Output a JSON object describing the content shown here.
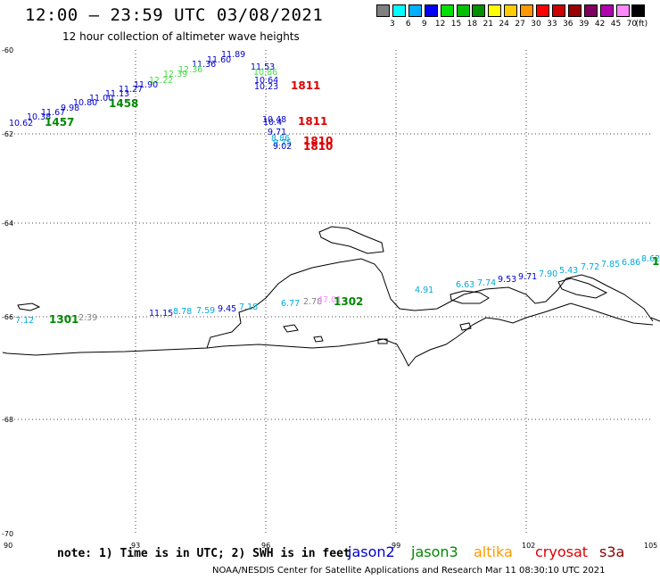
{
  "header": {
    "title": "12:00 – 23:59 UTC 03/08/2021",
    "subtitle": "12 hour collection of altimeter wave heights"
  },
  "color_scale": {
    "unit": "(ft)",
    "bins": [
      {
        "label": "",
        "color": "#808080"
      },
      {
        "label": "3",
        "color": "#00ffff"
      },
      {
        "label": "6",
        "color": "#00b0ff"
      },
      {
        "label": "9",
        "color": "#0000ff"
      },
      {
        "label": "12",
        "color": "#00e000"
      },
      {
        "label": "15",
        "color": "#00c000"
      },
      {
        "label": "18",
        "color": "#009000"
      },
      {
        "label": "21",
        "color": "#ffff00"
      },
      {
        "label": "24",
        "color": "#ffcc00"
      },
      {
        "label": "27",
        "color": "#ff9900"
      },
      {
        "label": "30",
        "color": "#ff0000"
      },
      {
        "label": "33",
        "color": "#cc0000"
      },
      {
        "label": "36",
        "color": "#990000"
      },
      {
        "label": "39",
        "color": "#800060"
      },
      {
        "label": "42",
        "color": "#b000b0"
      },
      {
        "label": "45",
        "color": "#ff88ff"
      },
      {
        "label": "70",
        "color": "#000000"
      }
    ]
  },
  "axes": {
    "lat_labels": [
      "-60",
      "-62",
      "-64",
      "-66",
      "-68",
      "-70"
    ],
    "lon_labels": [
      "90",
      "93",
      "96",
      "99",
      "102",
      "105"
    ]
  },
  "markers": [
    {
      "text": "11.89",
      "color": "#0000cc"
    },
    {
      "text": "11.60",
      "color": "#0000cc"
    },
    {
      "text": "11.36",
      "color": "#0000cc"
    },
    {
      "text": "12.36",
      "color": "#44dd44"
    },
    {
      "text": "12.39",
      "color": "#44dd44"
    },
    {
      "text": "12.22",
      "color": "#44dd44"
    },
    {
      "text": "11.90",
      "color": "#0000cc"
    },
    {
      "text": "11.27",
      "color": "#0000cc"
    },
    {
      "text": "11.13",
      "color": "#0000cc"
    },
    {
      "text": "11.00",
      "color": "#0000cc"
    },
    {
      "text": "10.80",
      "color": "#0000cc"
    },
    {
      "text": "9.98",
      "color": "#0000cc"
    },
    {
      "text": "11.67",
      "color": "#0000cc"
    },
    {
      "text": "10.38",
      "color": "#0000cc"
    },
    {
      "text": "10.62",
      "color": "#0000cc"
    },
    {
      "text": "1457",
      "color": "#008800"
    },
    {
      "text": "1458",
      "color": "#008800"
    },
    {
      "text": "11.53",
      "color": "#0000cc"
    },
    {
      "text": "10.86",
      "color": "#44dd44"
    },
    {
      "text": "10.64",
      "color": "#0000cc"
    },
    {
      "text": "10.23",
      "color": "#0000cc"
    },
    {
      "text": "1811",
      "color": "#dd0000"
    },
    {
      "text": "10.48",
      "color": "#0000cc"
    },
    {
      "text": "10.4",
      "color": "#0000cc"
    },
    {
      "text": "1811",
      "color": "#dd0000"
    },
    {
      "text": "9.71",
      "color": "#0000cc"
    },
    {
      "text": "8.86",
      "color": "#00aadd"
    },
    {
      "text": "9.75",
      "color": "#00aadd"
    },
    {
      "text": "9.02",
      "color": "#0000cc"
    },
    {
      "text": "1810",
      "color": "#dd0000"
    },
    {
      "text": "1810",
      "color": "#dd0000"
    },
    {
      "text": "7.12",
      "color": "#00aadd"
    },
    {
      "text": "1301",
      "color": "#008800"
    },
    {
      "text": "2.39",
      "color": "#808080"
    },
    {
      "text": "11.15",
      "color": "#0000cc"
    },
    {
      "text": "8.78",
      "color": "#00aadd"
    },
    {
      "text": "7.59",
      "color": "#00aadd"
    },
    {
      "text": "9.45",
      "color": "#0000cc"
    },
    {
      "text": "7.18",
      "color": "#00aadd"
    },
    {
      "text": "6.77",
      "color": "#00aadd"
    },
    {
      "text": "2.78",
      "color": "#808080"
    },
    {
      "text": "47.01",
      "color": "#ff88ff"
    },
    {
      "text": "1302",
      "color": "#008800"
    },
    {
      "text": "4.91",
      "color": "#00aadd"
    },
    {
      "text": "6.63",
      "color": "#00aadd"
    },
    {
      "text": "7.74",
      "color": "#00aadd"
    },
    {
      "text": "9.53",
      "color": "#0000cc"
    },
    {
      "text": "9.71",
      "color": "#0000cc"
    },
    {
      "text": "7.90",
      "color": "#00aadd"
    },
    {
      "text": "5.43",
      "color": "#00aadd"
    },
    {
      "text": "7.72",
      "color": "#00aadd"
    },
    {
      "text": "7.85",
      "color": "#00aadd"
    },
    {
      "text": "6.86",
      "color": "#00aadd"
    },
    {
      "text": "8.62",
      "color": "#00aadd"
    },
    {
      "text": "1",
      "color": "#008800"
    }
  ],
  "footer": {
    "note": "note:  1) Time is in UTC;  2) SWH is in feet",
    "satellites": [
      {
        "name": "jason2",
        "color": "#0000cc"
      },
      {
        "name": "jason3",
        "color": "#008800"
      },
      {
        "name": "altika",
        "color": "#ff9900"
      },
      {
        "name": "cryosat",
        "color": "#dd0000"
      },
      {
        "name": "s3a",
        "color": "#880000"
      }
    ],
    "credit": "NOAA/NESDIS Center for Satellite Applications and Research     Mar 11 08:30:10 UTC 2021"
  }
}
